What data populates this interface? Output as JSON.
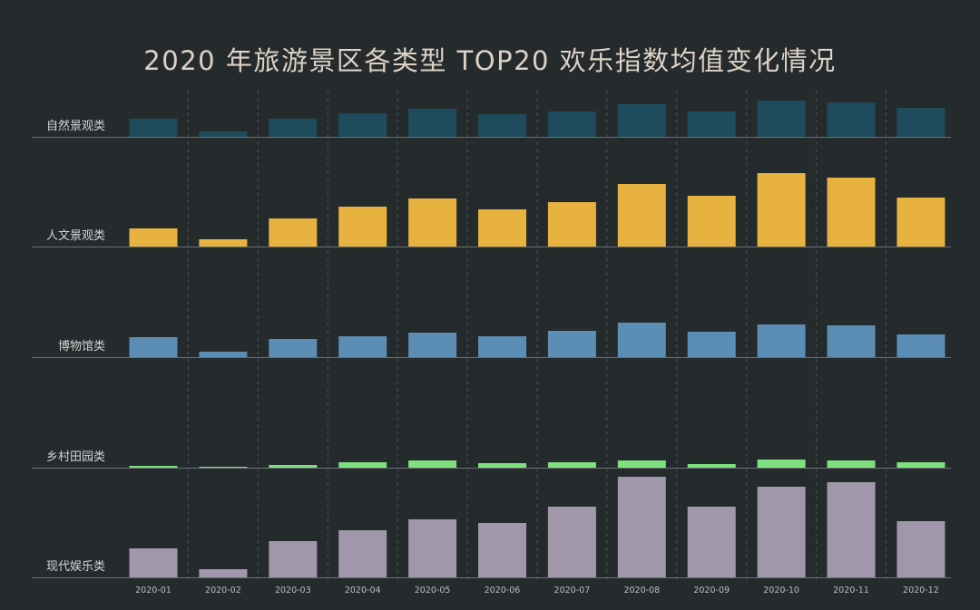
{
  "chart_data": {
    "type": "bar",
    "title": "2020 年旅游景区各类型 TOP20 欢乐指数均值变化情况",
    "layout_kind": "small-multiples",
    "grid": "vertical dashed lines between months",
    "categories": [
      "2020-01",
      "2020-02",
      "2020-03",
      "2020-04",
      "2020-05",
      "2020-06",
      "2020-07",
      "2020-08",
      "2020-09",
      "2020-10",
      "2020-11",
      "2020-12"
    ],
    "series": [
      {
        "name": "自然景观类",
        "color": "#1f4c5c",
        "values": [
          20,
          6,
          20,
          26,
          31,
          25,
          28,
          36,
          28,
          40,
          38,
          32
        ]
      },
      {
        "name": "人文景观类",
        "color": "#e8b240",
        "values": [
          20,
          8,
          31,
          44,
          53,
          41,
          49,
          69,
          56,
          81,
          76,
          54
        ]
      },
      {
        "name": "博物馆类",
        "color": "#5b8db5",
        "values": [
          22,
          6,
          20,
          23,
          27,
          23,
          29,
          38,
          28,
          36,
          35,
          25
        ]
      },
      {
        "name": "乡村田园类",
        "color": "#7fe07f",
        "values": [
          2,
          1,
          3,
          6,
          8,
          5,
          6,
          8,
          4,
          9,
          8,
          6
        ]
      },
      {
        "name": "现代娱乐类",
        "color": "#a197ab",
        "values": [
          32,
          9,
          40,
          52,
          64,
          60,
          78,
          111,
          78,
          100,
          105,
          62
        ]
      }
    ]
  }
}
